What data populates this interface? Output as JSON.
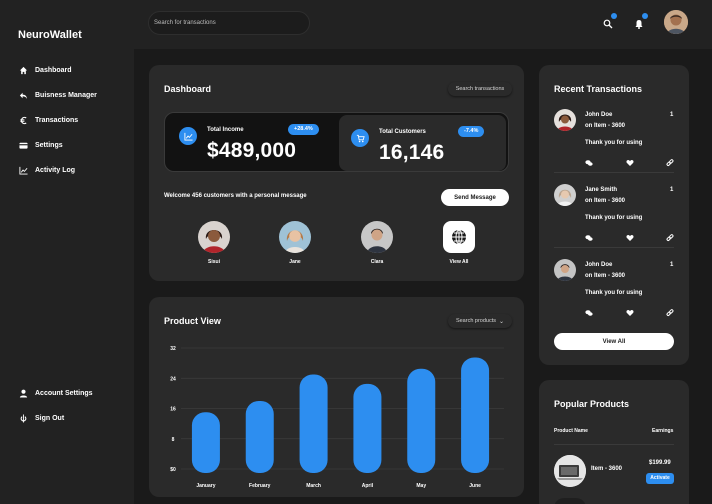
{
  "app": {
    "brand": "NeuroWallet"
  },
  "sidebar": {
    "items": [
      {
        "label": "Dashboard",
        "icon": "home-icon"
      },
      {
        "label": "Buisness Manager",
        "icon": "reply-arrow-icon"
      },
      {
        "label": "Transactions",
        "icon": "euro-icon"
      },
      {
        "label": "Settings",
        "icon": "card-icon"
      },
      {
        "label": "Activity Log",
        "icon": "trend-line-icon"
      }
    ],
    "bottom_items": [
      {
        "label": "Account Settings",
        "icon": "user-icon"
      },
      {
        "label": "Sign Out",
        "icon": "sign-out-icon"
      }
    ]
  },
  "topbar": {
    "search_placeholder": "Search for transactions",
    "icons": [
      "search-icon",
      "bell-icon",
      "avatar"
    ],
    "accent": "#2d8ef0"
  },
  "dashboard": {
    "title": "Dashboard",
    "search_button": "Search transactions",
    "total_income": {
      "label": "Total Income",
      "value": "$489,000",
      "change": "+28.4%"
    },
    "total_customers": {
      "label": "Total Customers",
      "value": "16,146",
      "change": "-7.4%"
    },
    "welcome_text": "Welcome 456 customers with a personal message",
    "send_button": "Send Message",
    "customers": [
      {
        "name": "Sisui"
      },
      {
        "name": "Jane"
      },
      {
        "name": "Clara"
      },
      {
        "name": "View All"
      }
    ]
  },
  "product_view": {
    "title": "Product View",
    "search_button": "Search products"
  },
  "chart_data": {
    "type": "bar",
    "categories": [
      "January",
      "February",
      "March",
      "April",
      "May",
      "June"
    ],
    "values": [
      15,
      18,
      25,
      22.5,
      26.5,
      29.5
    ],
    "ylim": [
      0,
      32
    ],
    "yticks": [
      "$0",
      "8",
      "16",
      "24",
      "32"
    ],
    "bar_color": "#2d8ef0",
    "grid": true
  },
  "recent_transactions": {
    "title": "Recent Transactions",
    "items": [
      {
        "name": "John Doe",
        "item": "on Item - 3600",
        "message": "Thank you for using",
        "count": "1"
      },
      {
        "name": "Jane Smith",
        "item": "on Item - 3600",
        "message": "Thank you for using",
        "count": "1"
      },
      {
        "name": "John Doe",
        "item": "on Item - 3600",
        "message": "Thank you for using",
        "count": "1"
      }
    ],
    "view_all": "View All"
  },
  "popular_products": {
    "title": "Popular Products",
    "col_product": "Product Name",
    "col_earnings": "Earnings",
    "items": [
      {
        "name": "Item - 3600",
        "price": "$199.99",
        "action": "Activate"
      }
    ]
  }
}
